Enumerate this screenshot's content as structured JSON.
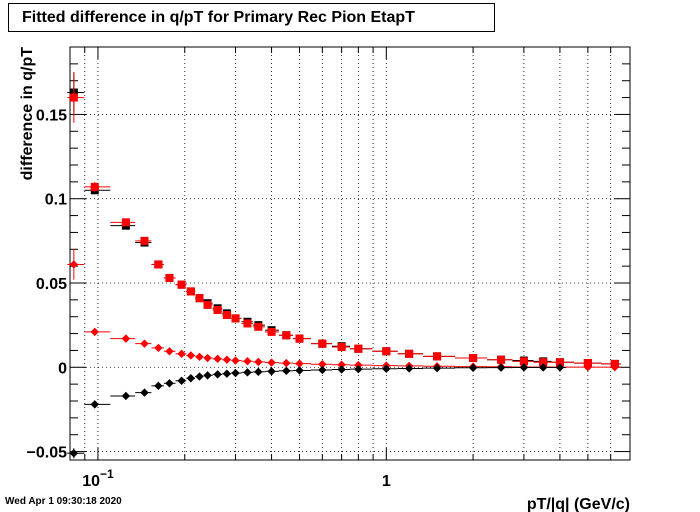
{
  "title": "Fitted difference in q/pT for Primary Rec Pion EtapT",
  "footer": "Wed Apr  1 09:30:18 2020",
  "chart_data": {
    "type": "scatter",
    "title": "Fitted difference in q/pT for Primary Rec Pion EtapT",
    "xlabel": "pT/|q| (GeV/c)",
    "ylabel": "difference in q/pT",
    "xscale": "log",
    "xlim": [
      0.08,
      7.0
    ],
    "ylim": [
      -0.055,
      0.19
    ],
    "grid": true,
    "x_ticks": [
      {
        "v": 0.1,
        "base": "10",
        "exp": "−1"
      },
      {
        "v": 1,
        "label": "1"
      }
    ],
    "y_ticks": [
      {
        "v": -0.05,
        "label": "−0.05"
      },
      {
        "v": 0,
        "label": "0"
      },
      {
        "v": 0.05,
        "label": "0.05"
      },
      {
        "v": 0.1,
        "label": "0.1"
      },
      {
        "v": 0.15,
        "label": "0.15"
      }
    ],
    "series": [
      {
        "color": "#000000",
        "marker": "square",
        "x": [
          0.0825,
          0.0975,
          0.125,
          0.145,
          0.162,
          0.177,
          0.195,
          0.21,
          0.225,
          0.24,
          0.26,
          0.28,
          0.3,
          0.33,
          0.36,
          0.4,
          0.45,
          0.5,
          0.6,
          0.7,
          0.8,
          1.0,
          1.2,
          1.5,
          2.0,
          2.5,
          3.0,
          3.5,
          4.0,
          5.0,
          6.2
        ],
        "y": [
          0.163,
          0.105,
          0.084,
          0.074,
          0.061,
          0.053,
          0.049,
          0.045,
          0.041,
          0.038,
          0.035,
          0.032,
          0.029,
          0.027,
          0.025,
          0.022,
          0.019,
          0.017,
          0.014,
          0.0125,
          0.011,
          0.0095,
          0.008,
          0.0065,
          0.0055,
          0.0045,
          0.004,
          0.0035,
          0.003,
          0.0025,
          0.002
        ],
        "yerr": [
          0.012,
          0.002,
          0.002,
          0.001,
          0.001,
          0.001,
          0.001,
          0.001,
          0.001,
          0.001,
          0.001,
          0.001,
          0.001,
          0.001,
          0.001,
          0.001,
          0.001,
          0.001,
          0.001,
          0.001,
          0.001,
          0.001,
          0.001,
          0.001,
          0.001,
          0.001,
          0.001,
          0.001,
          0.001,
          0.001,
          0.001
        ]
      },
      {
        "color": "#ff0000",
        "marker": "square",
        "x": [
          0.0825,
          0.0975,
          0.125,
          0.145,
          0.162,
          0.177,
          0.195,
          0.21,
          0.225,
          0.24,
          0.26,
          0.28,
          0.3,
          0.33,
          0.36,
          0.4,
          0.45,
          0.5,
          0.6,
          0.7,
          0.8,
          1.0,
          1.2,
          1.5,
          2.0,
          2.5,
          3.0,
          3.5,
          4.0,
          5.0,
          6.2
        ],
        "y": [
          0.16,
          0.107,
          0.086,
          0.075,
          0.061,
          0.053,
          0.049,
          0.045,
          0.041,
          0.037,
          0.034,
          0.031,
          0.029,
          0.026,
          0.024,
          0.021,
          0.019,
          0.017,
          0.014,
          0.012,
          0.011,
          0.0095,
          0.008,
          0.0065,
          0.0055,
          0.0045,
          0.0035,
          0.003,
          0.003,
          0.0025,
          0.002
        ],
        "yerr": [
          0.015,
          0.003,
          0.002,
          0.002,
          0.001,
          0.001,
          0.001,
          0.001,
          0.001,
          0.001,
          0.001,
          0.001,
          0.001,
          0.001,
          0.001,
          0.001,
          0.001,
          0.001,
          0.001,
          0.001,
          0.001,
          0.001,
          0.001,
          0.001,
          0.001,
          0.001,
          0.001,
          0.001,
          0.001,
          0.001,
          0.001
        ]
      },
      {
        "color": "#ff0000",
        "marker": "diamond",
        "x": [
          0.0825,
          0.0975,
          0.125,
          0.145,
          0.162,
          0.177,
          0.195,
          0.21,
          0.225,
          0.24,
          0.26,
          0.28,
          0.3,
          0.33,
          0.36,
          0.4,
          0.45,
          0.5,
          0.6,
          0.7,
          0.8,
          1.0,
          1.2,
          1.5,
          2.0,
          2.5,
          3.0,
          3.5,
          4.0,
          5.0,
          6.2
        ],
        "y": [
          0.061,
          0.021,
          0.017,
          0.014,
          0.0115,
          0.0095,
          0.008,
          0.007,
          0.0062,
          0.0055,
          0.005,
          0.0045,
          0.004,
          0.0036,
          0.0032,
          0.0028,
          0.0025,
          0.0022,
          0.0018,
          0.0015,
          0.0013,
          0.001,
          0.0008,
          0.0006,
          0.0004,
          0.0003,
          0.0002,
          0.0002,
          0.0001,
          0.0001,
          0.0001
        ],
        "yerr": [
          0.009,
          0.002,
          0.001,
          0.001,
          0.001,
          0.001,
          0.001,
          0.001,
          0.001,
          0.001,
          0.001,
          0.001,
          0.001,
          0.001,
          0.001,
          0.001,
          0.001,
          0.001,
          0.001,
          0.001,
          0.001,
          0.001,
          0.001,
          0.001,
          0.001,
          0.001,
          0.001,
          0.001,
          0.001,
          0.001,
          0.001
        ]
      },
      {
        "color": "#000000",
        "marker": "diamond",
        "x": [
          0.0825,
          0.0975,
          0.125,
          0.145,
          0.162,
          0.177,
          0.195,
          0.21,
          0.225,
          0.24,
          0.26,
          0.28,
          0.3,
          0.33,
          0.36,
          0.4,
          0.45,
          0.5,
          0.6,
          0.7,
          0.8,
          1.0,
          1.2,
          1.5,
          2.0,
          2.5,
          3.0,
          3.5,
          4.0
        ],
        "y": [
          -0.051,
          -0.022,
          -0.017,
          -0.015,
          -0.011,
          -0.0095,
          -0.008,
          -0.0065,
          -0.0055,
          -0.0048,
          -0.0042,
          -0.0038,
          -0.0034,
          -0.003,
          -0.0027,
          -0.0024,
          -0.0021,
          -0.0019,
          -0.0016,
          -0.0013,
          -0.0011,
          -0.0009,
          -0.0007,
          -0.0005,
          -0.0003,
          -0.0002,
          -0.0001,
          -0.0001,
          -0.0001
        ],
        "yerr": [
          0.003,
          0.001,
          0.001,
          0.001,
          0.001,
          0.001,
          0.001,
          0.001,
          0.001,
          0.001,
          0.001,
          0.001,
          0.001,
          0.001,
          0.001,
          0.001,
          0.001,
          0.001,
          0.001,
          0.001,
          0.001,
          0.001,
          0.001,
          0.001,
          0.001,
          0.001,
          0.001,
          0.001,
          0.001
        ]
      }
    ]
  }
}
